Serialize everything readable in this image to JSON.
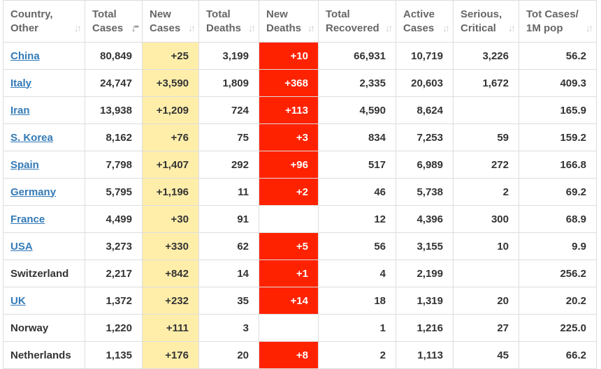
{
  "headers": [
    {
      "label": "Country,\nOther",
      "sort": "none"
    },
    {
      "label": "Total\nCases",
      "sort": "desc"
    },
    {
      "label": "New\nCases",
      "sort": "none"
    },
    {
      "label": "Total\nDeaths",
      "sort": "none"
    },
    {
      "label": "New\nDeaths",
      "sort": "none"
    },
    {
      "label": "Total\nRecovered",
      "sort": "none"
    },
    {
      "label": "Active\nCases",
      "sort": "none"
    },
    {
      "label": "Serious,\nCritical",
      "sort": "none"
    },
    {
      "label": "Tot Cases/\n1M pop",
      "sort": "none"
    }
  ],
  "colors": {
    "new_cases_bg": "#ffeeaa",
    "new_deaths_bg": "#ff2200",
    "link": "#337ab7"
  },
  "rows": [
    {
      "country": "China",
      "link": true,
      "total_cases": "80,849",
      "new_cases": "+25",
      "total_deaths": "3,199",
      "new_deaths": "+10",
      "total_recovered": "66,931",
      "active_cases": "10,719",
      "serious": "3,226",
      "per_million": "56.2"
    },
    {
      "country": "Italy",
      "link": true,
      "total_cases": "24,747",
      "new_cases": "+3,590",
      "total_deaths": "1,809",
      "new_deaths": "+368",
      "total_recovered": "2,335",
      "active_cases": "20,603",
      "serious": "1,672",
      "per_million": "409.3"
    },
    {
      "country": "Iran",
      "link": true,
      "total_cases": "13,938",
      "new_cases": "+1,209",
      "total_deaths": "724",
      "new_deaths": "+113",
      "total_recovered": "4,590",
      "active_cases": "8,624",
      "serious": "",
      "per_million": "165.9"
    },
    {
      "country": "S. Korea",
      "link": true,
      "total_cases": "8,162",
      "new_cases": "+76",
      "total_deaths": "75",
      "new_deaths": "+3",
      "total_recovered": "834",
      "active_cases": "7,253",
      "serious": "59",
      "per_million": "159.2"
    },
    {
      "country": "Spain",
      "link": true,
      "total_cases": "7,798",
      "new_cases": "+1,407",
      "total_deaths": "292",
      "new_deaths": "+96",
      "total_recovered": "517",
      "active_cases": "6,989",
      "serious": "272",
      "per_million": "166.8"
    },
    {
      "country": "Germany",
      "link": true,
      "total_cases": "5,795",
      "new_cases": "+1,196",
      "total_deaths": "11",
      "new_deaths": "+2",
      "total_recovered": "46",
      "active_cases": "5,738",
      "serious": "2",
      "per_million": "69.2"
    },
    {
      "country": "France",
      "link": true,
      "total_cases": "4,499",
      "new_cases": "+30",
      "total_deaths": "91",
      "new_deaths": "",
      "total_recovered": "12",
      "active_cases": "4,396",
      "serious": "300",
      "per_million": "68.9"
    },
    {
      "country": "USA",
      "link": true,
      "total_cases": "3,273",
      "new_cases": "+330",
      "total_deaths": "62",
      "new_deaths": "+5",
      "total_recovered": "56",
      "active_cases": "3,155",
      "serious": "10",
      "per_million": "9.9"
    },
    {
      "country": "Switzerland",
      "link": false,
      "total_cases": "2,217",
      "new_cases": "+842",
      "total_deaths": "14",
      "new_deaths": "+1",
      "total_recovered": "4",
      "active_cases": "2,199",
      "serious": "",
      "per_million": "256.2"
    },
    {
      "country": "UK",
      "link": true,
      "total_cases": "1,372",
      "new_cases": "+232",
      "total_deaths": "35",
      "new_deaths": "+14",
      "total_recovered": "18",
      "active_cases": "1,319",
      "serious": "20",
      "per_million": "20.2"
    },
    {
      "country": "Norway",
      "link": false,
      "total_cases": "1,220",
      "new_cases": "+111",
      "total_deaths": "3",
      "new_deaths": "",
      "total_recovered": "1",
      "active_cases": "1,216",
      "serious": "27",
      "per_million": "225.0"
    },
    {
      "country": "Netherlands",
      "link": false,
      "total_cases": "1,135",
      "new_cases": "+176",
      "total_deaths": "20",
      "new_deaths": "+8",
      "total_recovered": "2",
      "active_cases": "1,113",
      "serious": "45",
      "per_million": "66.2"
    }
  ]
}
